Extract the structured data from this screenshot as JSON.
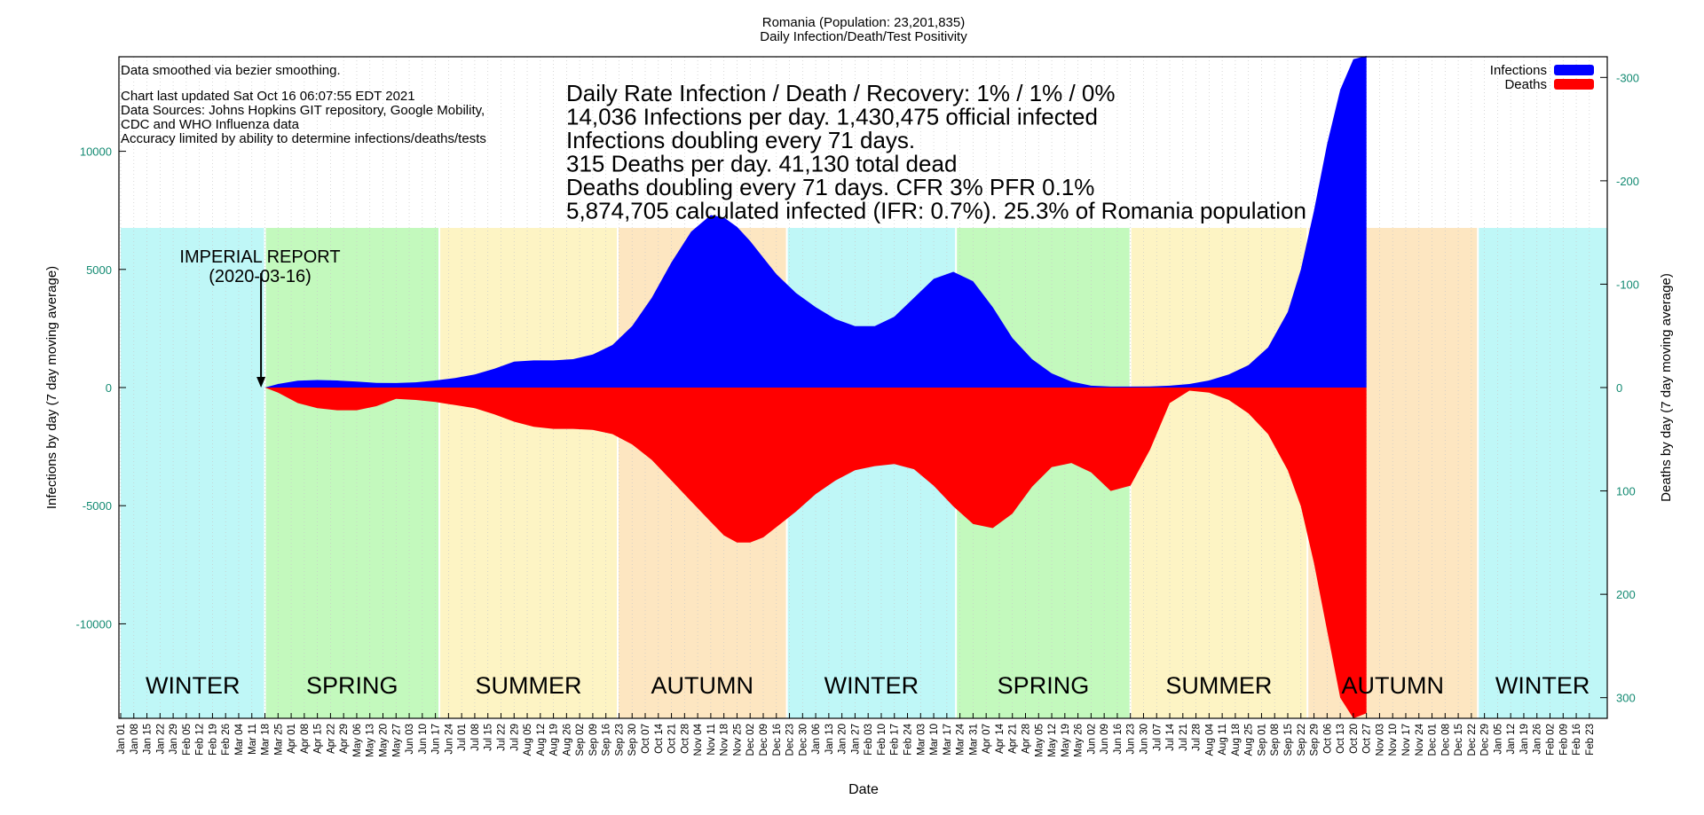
{
  "chart_data": {
    "type": "area",
    "title": "Romania (Population: 23,201,835)",
    "subtitle": "Daily Infection/Death/Test Positivity",
    "xlabel": "Date",
    "ylabel_left": "Infections by day (7 day moving average)",
    "ylabel_right": "Deaths by day (7 day moving average)",
    "ylim_left": [
      -14000,
      14000
    ],
    "ylim_right": [
      -320,
      320
    ],
    "yticks_left": [
      {
        "value": 10000,
        "label": "10000"
      },
      {
        "value": 5000,
        "label": "5000"
      },
      {
        "value": 0,
        "label": "0"
      },
      {
        "value": -5000,
        "label": "-5000"
      },
      {
        "value": -10000,
        "label": "-10000"
      }
    ],
    "yticks_right": [
      {
        "value": -300,
        "label": "-300"
      },
      {
        "value": -200,
        "label": "-200"
      },
      {
        "value": -100,
        "label": "-100"
      },
      {
        "value": 0,
        "label": "0"
      },
      {
        "value": 100,
        "label": "100"
      },
      {
        "value": 200,
        "label": "200"
      },
      {
        "value": 300,
        "label": "300"
      }
    ],
    "legend_position": "top-right",
    "grid": true,
    "x_tick_labels": [
      "Jan 01",
      "Jan 08",
      "Jan 15",
      "Jan 22",
      "Jan 29",
      "Feb 05",
      "Feb 12",
      "Feb 19",
      "Feb 26",
      "Mar 04",
      "Mar 11",
      "Mar 18",
      "Mar 25",
      "Apr 01",
      "Apr 08",
      "Apr 15",
      "Apr 22",
      "Apr 29",
      "May 06",
      "May 13",
      "May 20",
      "May 27",
      "Jun 03",
      "Jun 10",
      "Jun 17",
      "Jun 24",
      "Jul 01",
      "Jul 08",
      "Jul 15",
      "Jul 22",
      "Jul 29",
      "Aug 05",
      "Aug 12",
      "Aug 19",
      "Aug 26",
      "Sep 02",
      "Sep 09",
      "Sep 16",
      "Sep 23",
      "Sep 30",
      "Oct 07",
      "Oct 14",
      "Oct 21",
      "Oct 28",
      "Nov 04",
      "Nov 11",
      "Nov 18",
      "Nov 25",
      "Dec 02",
      "Dec 09",
      "Dec 16",
      "Dec 23",
      "Dec 30",
      "Jan 06",
      "Jan 13",
      "Jan 20",
      "Jan 27",
      "Feb 03",
      "Feb 10",
      "Feb 17",
      "Feb 24",
      "Mar 03",
      "Mar 10",
      "Mar 17",
      "Mar 24",
      "Mar 31",
      "Apr 07",
      "Apr 14",
      "Apr 21",
      "Apr 28",
      "May 05",
      "May 12",
      "May 19",
      "May 26",
      "Jun 02",
      "Jun 09",
      "Jun 16",
      "Jun 23",
      "Jun 30",
      "Jul 07",
      "Jul 14",
      "Jul 21",
      "Jul 28",
      "Aug 04",
      "Aug 11",
      "Aug 18",
      "Aug 25",
      "Sep 01",
      "Sep 08",
      "Sep 15",
      "Sep 22",
      "Sep 29",
      "Oct 06",
      "Oct 13",
      "Oct 20",
      "Oct 27",
      "Nov 03",
      "Nov 10",
      "Nov 17",
      "Nov 24",
      "Dec 01",
      "Dec 08",
      "Dec 15",
      "Dec 22",
      "Dec 29",
      "Jan 05",
      "Jan 12",
      "Jan 19",
      "Jan 26",
      "Feb 02",
      "Feb 09",
      "Feb 16",
      "Feb 23"
    ],
    "seasons": [
      {
        "label": "WINTER",
        "start_week": 0,
        "end_week": 11,
        "color": "#bff7f7"
      },
      {
        "label": "SPRING",
        "start_week": 11,
        "end_week": 24.3,
        "color": "#c3f9bd"
      },
      {
        "label": "SUMMER",
        "start_week": 24.3,
        "end_week": 37.9,
        "color": "#fdf4c4"
      },
      {
        "label": "AUTUMN",
        "start_week": 37.9,
        "end_week": 50.8,
        "color": "#fde6c1"
      },
      {
        "label": "WINTER",
        "start_week": 50.8,
        "end_week": 63.7,
        "color": "#bff7f7"
      },
      {
        "label": "SPRING",
        "start_week": 63.7,
        "end_week": 77,
        "color": "#c3f9bd"
      },
      {
        "label": "SUMMER",
        "start_week": 77,
        "end_week": 90.5,
        "color": "#fdf4c4"
      },
      {
        "label": "AUTUMN",
        "start_week": 90.5,
        "end_week": 103.5,
        "color": "#fde6c1"
      },
      {
        "label": "WINTER",
        "start_week": 103.5,
        "end_week": 114.4,
        "color": "#bff7f7"
      }
    ],
    "series": [
      {
        "name": "Infections",
        "color": "#0000ff",
        "axis": "left",
        "x_week": [
          10.0,
          11.0,
          12.0,
          13.5,
          15.0,
          16.5,
          18.0,
          19.5,
          21.0,
          22.5,
          24.0,
          25.5,
          27.0,
          28.5,
          30.0,
          31.5,
          33.0,
          34.5,
          36.0,
          37.5,
          39.0,
          40.5,
          42.0,
          43.5,
          45.0,
          46.0,
          47.0,
          48.0,
          49.0,
          50.0,
          51.5,
          53.0,
          54.5,
          56.0,
          57.5,
          59.0,
          60.5,
          62.0,
          63.5,
          65.0,
          66.5,
          68.0,
          69.5,
          71.0,
          72.5,
          74.0,
          75.5,
          77.0,
          78.5,
          80.0,
          81.5,
          83.0,
          84.5,
          86.0,
          87.5,
          89.0,
          90.0,
          91.0,
          92.0,
          93.0,
          94.0,
          95.0
        ],
        "values": [
          0,
          0,
          150,
          290,
          320,
          300,
          250,
          200,
          190,
          220,
          300,
          400,
          550,
          800,
          1100,
          1150,
          1150,
          1200,
          1400,
          1800,
          2600,
          3800,
          5300,
          6600,
          7300,
          7200,
          6800,
          6200,
          5500,
          4800,
          4000,
          3400,
          2900,
          2600,
          2600,
          3000,
          3800,
          4600,
          4900,
          4500,
          3400,
          2100,
          1200,
          600,
          250,
          80,
          40,
          40,
          50,
          80,
          150,
          300,
          550,
          950,
          1700,
          3200,
          5000,
          7500,
          10300,
          12600,
          13900,
          14036
        ]
      },
      {
        "name": "Deaths",
        "color": "#ff0000",
        "axis": "right",
        "x_week": [
          10.0,
          11.0,
          12.0,
          13.5,
          15.0,
          16.5,
          18.0,
          19.5,
          21.0,
          22.5,
          24.0,
          25.5,
          27.0,
          28.5,
          30.0,
          31.5,
          33.0,
          34.5,
          36.0,
          37.5,
          39.0,
          40.5,
          42.0,
          43.5,
          45.0,
          46.0,
          47.0,
          48.0,
          49.0,
          50.0,
          51.5,
          53.0,
          54.5,
          56.0,
          57.5,
          59.0,
          60.5,
          62.0,
          63.5,
          65.0,
          66.5,
          68.0,
          69.5,
          71.0,
          72.5,
          74.0,
          75.5,
          77.0,
          78.5,
          80.0,
          81.5,
          83.0,
          84.5,
          86.0,
          87.5,
          89.0,
          90.0,
          91.0,
          92.0,
          93.0,
          94.0,
          95.0
        ],
        "values": [
          0,
          0,
          5,
          15,
          20,
          22,
          22,
          18,
          11,
          12,
          14,
          17,
          20,
          26,
          33,
          38,
          40,
          40,
          41,
          45,
          55,
          70,
          90,
          110,
          130,
          143,
          150,
          150,
          145,
          135,
          120,
          103,
          90,
          80,
          76,
          74,
          79,
          95,
          115,
          132,
          136,
          122,
          96,
          77,
          73,
          82,
          100,
          95,
          60,
          15,
          3,
          5,
          12,
          25,
          45,
          80,
          115,
          170,
          235,
          300,
          320,
          315
        ]
      }
    ],
    "annotation": {
      "text_lines": [
        "IMPERIAL REPORT",
        "(2020-03-16)"
      ],
      "x_week": 10.7,
      "value": 0
    },
    "notes": [
      "Data smoothed via bezier smoothing.",
      "Chart last updated Sat Oct 16 06:07:55 EDT 2021",
      "Data Sources: Johns Hopkins GIT repository, Google Mobility,",
      "CDC and WHO Influenza data",
      "Accuracy limited by ability to determine infections/deaths/tests"
    ],
    "stats_lines": [
      "Daily Rate Infection / Death / Recovery: 1% / 1% / 0%",
      "14,036 Infections per day.  1,430,475 official infected",
      "Infections doubling every 71 days.",
      "315 Deaths per day.  41,130 total dead",
      "Deaths doubling every 71 days.  CFR 3%  PFR 0.1%",
      "5,874,705 calculated infected (IFR: 0.7%).  25.3% of Romania population"
    ]
  }
}
